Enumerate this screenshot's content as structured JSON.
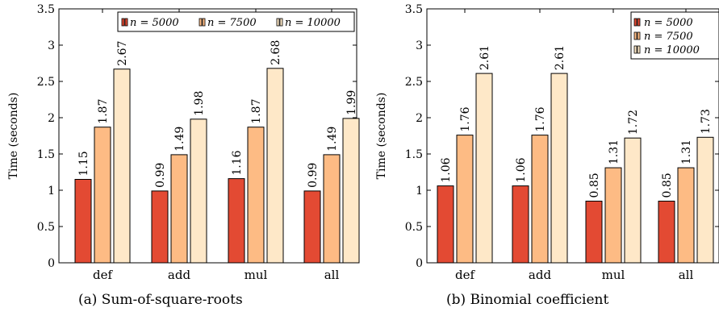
{
  "colors": {
    "series": [
      "#e34a33",
      "#fdbb84",
      "#fee8c8"
    ]
  },
  "chart_data": [
    {
      "type": "bar",
      "caption": "(a) Sum-of-square-roots",
      "ylabel": "Time (seconds)",
      "ylim": [
        0,
        3.5
      ],
      "yticks": [
        "0",
        "0.5",
        "1",
        "1.5",
        "2",
        "2.5",
        "3",
        "3.5"
      ],
      "categories": [
        "def",
        "add",
        "mul",
        "all"
      ],
      "legend_position": "top-right",
      "legend_layout": "horizontal",
      "series": [
        {
          "name": "n = 5000",
          "values": [
            1.15,
            0.99,
            1.16,
            0.99
          ]
        },
        {
          "name": "n = 7500",
          "values": [
            1.87,
            1.49,
            1.87,
            1.49
          ]
        },
        {
          "name": "n = 10000",
          "values": [
            2.67,
            1.98,
            2.68,
            1.99
          ]
        }
      ]
    },
    {
      "type": "bar",
      "caption": "(b) Binomial coefficient",
      "ylabel": "Time (seconds)",
      "ylim": [
        0,
        3.5
      ],
      "yticks": [
        "0",
        "0.5",
        "1",
        "1.5",
        "2",
        "2.5",
        "3",
        "3.5"
      ],
      "categories": [
        "def",
        "add",
        "mul",
        "all"
      ],
      "legend_position": "top-right",
      "legend_layout": "vertical",
      "series": [
        {
          "name": "n = 5000",
          "values": [
            1.06,
            1.06,
            0.85,
            0.85
          ]
        },
        {
          "name": "n = 7500",
          "values": [
            1.76,
            1.76,
            1.31,
            1.31
          ]
        },
        {
          "name": "n = 10000",
          "values": [
            2.61,
            2.61,
            1.72,
            1.73
          ]
        }
      ]
    }
  ]
}
